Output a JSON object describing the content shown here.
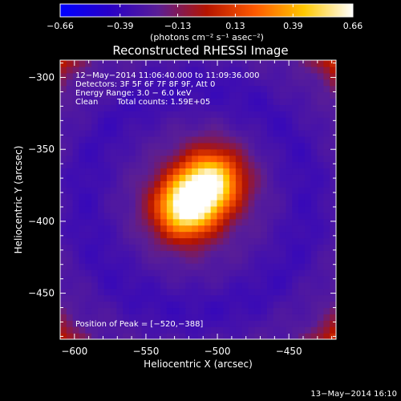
{
  "chart_data": {
    "type": "heatmap",
    "title": "Reconstructed RHESSI Image",
    "xlabel": "Heliocentric X (arcsec)",
    "ylabel": "Heliocentric Y (arcsec)",
    "xlim": [
      -610,
      -417
    ],
    "ylim": [
      -482,
      -288
    ],
    "x_ticks": [
      -600,
      -550,
      -500,
      -450
    ],
    "y_ticks": [
      -300,
      -350,
      -400,
      -450
    ],
    "colorbar": {
      "min": -0.66,
      "max": 0.66,
      "ticks": [
        -0.66,
        -0.39,
        -0.13,
        0.13,
        0.39,
        0.66
      ],
      "tick_labels": [
        "−0.66",
        "−0.39",
        "−0.13",
        "0.13",
        "0.39",
        "0.66"
      ],
      "units_label": "(photons cm⁻² s⁻¹ asec⁻²)",
      "stops": [
        "#0000ff",
        "#2800c8",
        "#5a1e96",
        "#b41400",
        "#ff5a00",
        "#ffc800",
        "#ffffff"
      ]
    },
    "sources": [
      {
        "x": -522,
        "y": -390,
        "peak": 0.66
      },
      {
        "x": -504,
        "y": -372,
        "peak": 0.55
      }
    ],
    "background_level": -0.25,
    "peak_position": [
      -520,
      -388
    ]
  },
  "annotations": {
    "time_range": "12−May−2014 11:06:40.000 to 11:09:36.000",
    "detectors": "Detectors: 3F 5F 6F 7F 8F 9F, Att 0",
    "energy": "Energy Range: 3.0 − 6.0 keV",
    "clean_label": "Clean",
    "counts": "Total counts: 1.59E+05",
    "peak_label": "Position of Peak = [−520,−388]",
    "timestamp": "13−May−2014 16:10"
  },
  "tick_labels": {
    "x": [
      "−600",
      "−550",
      "−500",
      "−450"
    ],
    "y": [
      "−300",
      "−350",
      "−400",
      "−450"
    ]
  }
}
